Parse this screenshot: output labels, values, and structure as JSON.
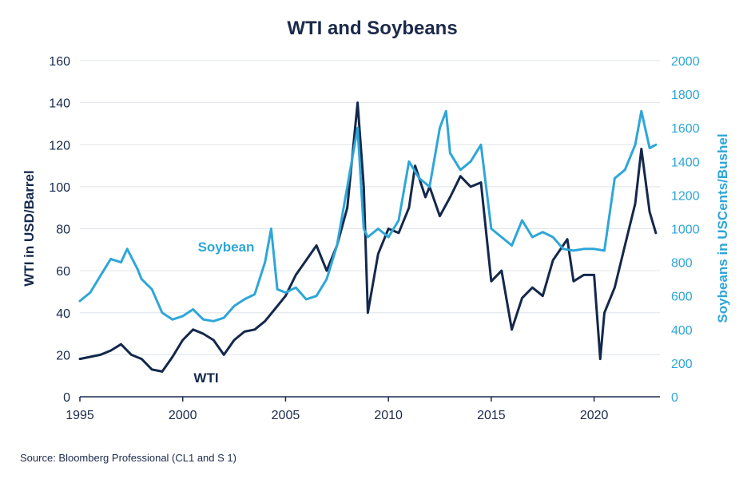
{
  "title": "WTI and Soybeans",
  "source": "Source: Bloomberg Professional (CL1 and S 1)",
  "colors": {
    "wti": "#14284b",
    "soybean": "#2ea6d8",
    "grid": "#dfe3e8",
    "text": "#1b2a4a"
  },
  "chart_data": {
    "type": "line",
    "title": "WTI and Soybeans",
    "xlim": [
      1995,
      2023.2
    ],
    "x_ticks": [
      "1995",
      "2000",
      "2005",
      "2010",
      "2015",
      "2020"
    ],
    "ylabel_left": "WTI in USD/Barrel",
    "ylim_left": [
      0,
      160
    ],
    "y_ticks_left": [
      "0",
      "20",
      "40",
      "60",
      "80",
      "100",
      "120",
      "140",
      "160"
    ],
    "ylabel_right": "Soybeans in USCents/Bushel",
    "ylim_right": [
      0,
      2000
    ],
    "y_ticks_right": [
      "0",
      "200",
      "400",
      "600",
      "800",
      "1000",
      "1200",
      "1400",
      "1600",
      "1800",
      "2000"
    ],
    "grid": "horizontal",
    "series": [
      {
        "name": "WTI",
        "axis": "left",
        "x": [
          1995.0,
          1995.5,
          1996.0,
          1996.5,
          1997.0,
          1997.5,
          1998.0,
          1998.5,
          1999.0,
          1999.5,
          2000.0,
          2000.5,
          2001.0,
          2001.5,
          2002.0,
          2002.5,
          2003.0,
          2003.5,
          2004.0,
          2004.5,
          2005.0,
          2005.5,
          2006.0,
          2006.5,
          2007.0,
          2007.5,
          2008.0,
          2008.5,
          2008.8,
          2009.0,
          2009.5,
          2010.0,
          2010.5,
          2011.0,
          2011.3,
          2011.8,
          2012.0,
          2012.5,
          2013.0,
          2013.5,
          2014.0,
          2014.5,
          2015.0,
          2015.5,
          2016.0,
          2016.5,
          2017.0,
          2017.5,
          2018.0,
          2018.7,
          2019.0,
          2019.5,
          2020.0,
          2020.3,
          2020.5,
          2021.0,
          2021.5,
          2022.0,
          2022.3,
          2022.7,
          2023.0
        ],
        "y": [
          18,
          19,
          20,
          22,
          25,
          20,
          18,
          13,
          12,
          19,
          27,
          32,
          30,
          27,
          20,
          27,
          31,
          32,
          36,
          42,
          48,
          58,
          65,
          72,
          60,
          72,
          90,
          140,
          100,
          40,
          68,
          80,
          78,
          90,
          110,
          95,
          100,
          86,
          95,
          105,
          100,
          102,
          55,
          60,
          32,
          47,
          52,
          48,
          65,
          75,
          55,
          58,
          58,
          18,
          40,
          52,
          72,
          92,
          118,
          88,
          78
        ]
      },
      {
        "name": "Soybean",
        "axis": "right",
        "x": [
          1995.0,
          1995.5,
          1996.0,
          1996.5,
          1997.0,
          1997.3,
          1997.8,
          1998.0,
          1998.5,
          1999.0,
          1999.5,
          2000.0,
          2000.5,
          2001.0,
          2001.5,
          2002.0,
          2002.5,
          2003.0,
          2003.5,
          2004.0,
          2004.3,
          2004.6,
          2005.0,
          2005.5,
          2006.0,
          2006.5,
          2007.0,
          2007.5,
          2008.0,
          2008.5,
          2008.8,
          2009.0,
          2009.5,
          2010.0,
          2010.5,
          2011.0,
          2011.5,
          2012.0,
          2012.5,
          2012.8,
          2013.0,
          2013.5,
          2014.0,
          2014.5,
          2015.0,
          2015.5,
          2016.0,
          2016.5,
          2017.0,
          2017.5,
          2018.0,
          2018.5,
          2019.0,
          2019.5,
          2020.0,
          2020.5,
          2021.0,
          2021.5,
          2022.0,
          2022.3,
          2022.7,
          2023.0
        ],
        "y": [
          570,
          620,
          720,
          820,
          800,
          880,
          760,
          700,
          640,
          500,
          460,
          480,
          520,
          460,
          450,
          470,
          540,
          580,
          610,
          800,
          1000,
          640,
          620,
          650,
          580,
          600,
          700,
          900,
          1250,
          1600,
          1000,
          950,
          1000,
          950,
          1050,
          1400,
          1300,
          1250,
          1600,
          1700,
          1450,
          1350,
          1400,
          1500,
          1000,
          950,
          900,
          1050,
          950,
          980,
          950,
          880,
          870,
          880,
          880,
          870,
          1300,
          1350,
          1500,
          1700,
          1480,
          1500
        ]
      }
    ],
    "annotations": [
      {
        "text": "Soybean",
        "series": "Soybean"
      },
      {
        "text": "WTI",
        "series": "WTI"
      }
    ]
  }
}
